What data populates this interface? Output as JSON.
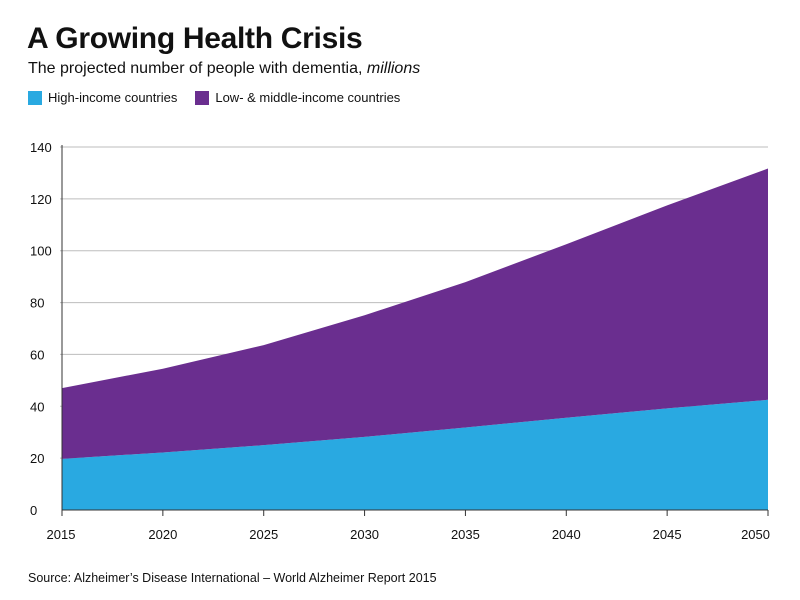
{
  "chart_data": {
    "type": "area",
    "stacked": true,
    "title": "A Growing Health Crisis",
    "subtitle": "The projected number of people with dementia,",
    "subtitle_unit": "millions",
    "x": [
      2015,
      2020,
      2025,
      2030,
      2035,
      2040,
      2045,
      2050
    ],
    "series": [
      {
        "name": "High-income countries",
        "color": "#29a9e1",
        "values": [
          19.7,
          22.2,
          25,
          28.2,
          31.8,
          35.6,
          39.2,
          42.5
        ]
      },
      {
        "name": "Low- & middle-income countries",
        "color": "#6a2e8f",
        "values": [
          27.3,
          32.3,
          38.6,
          46.9,
          56.1,
          66.9,
          78.3,
          89.2
        ]
      }
    ],
    "totals": [
      47,
      54.5,
      63.6,
      75.1,
      87.9,
      102.5,
      117.5,
      131.7
    ],
    "ylim": [
      0,
      140
    ],
    "yticks": [
      0,
      20,
      40,
      60,
      80,
      100,
      120,
      140
    ],
    "xticks": [
      2015,
      2020,
      2025,
      2030,
      2035,
      2040,
      2045,
      2050
    ],
    "grid": "horizontal",
    "legend_position": "top-left",
    "xlabel": "",
    "ylabel": "",
    "source": "Source: Alzheimer’s Disease International – World Alzheimer Report 2015"
  }
}
